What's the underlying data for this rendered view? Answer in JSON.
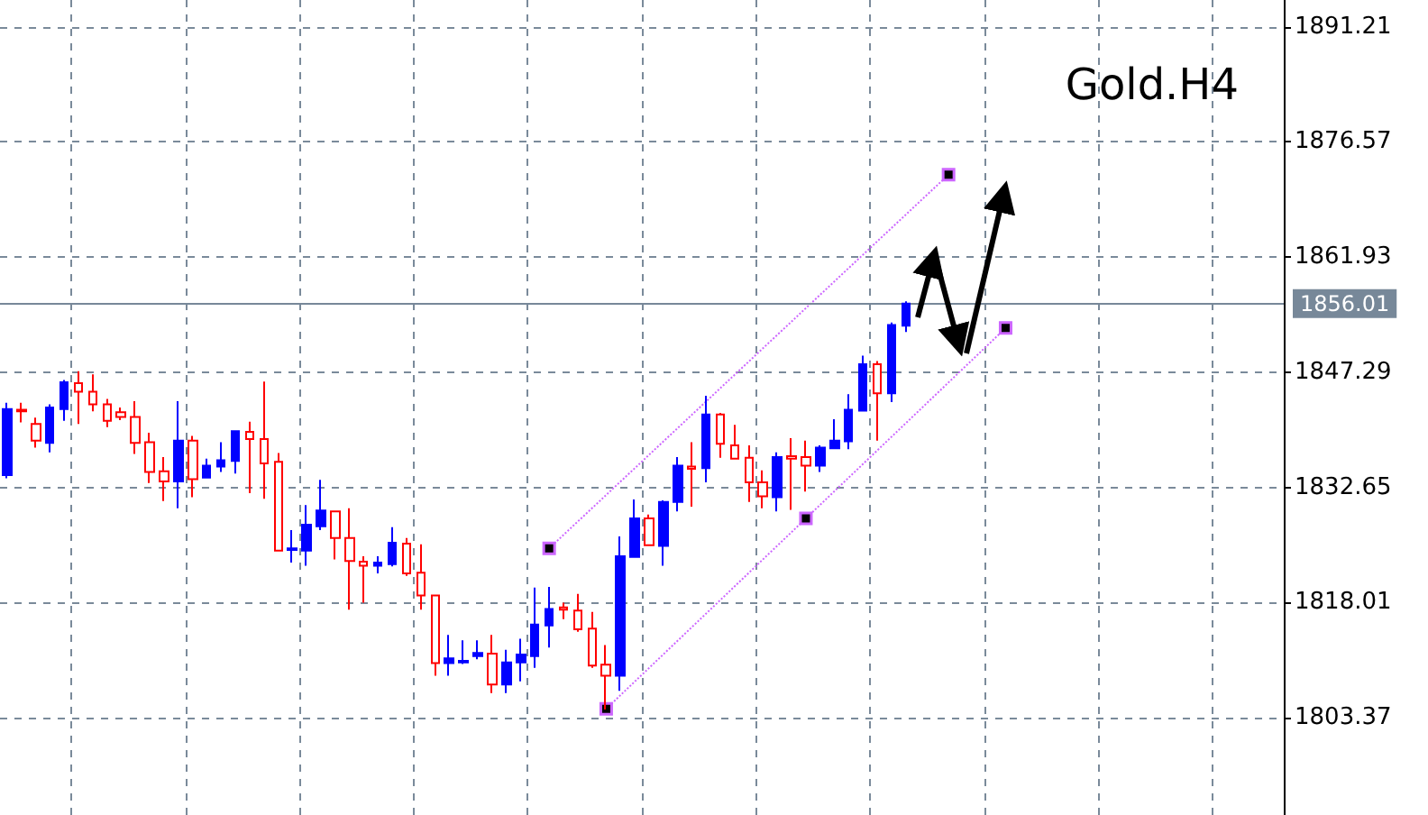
{
  "chart_data": {
    "type": "candlestick",
    "title": "Gold.H4",
    "categories": [
      null,
      null,
      null,
      null,
      null,
      null,
      null,
      null,
      null,
      null,
      null,
      null,
      null,
      null,
      null,
      null,
      null,
      null,
      null,
      null,
      null,
      null,
      null,
      null,
      null,
      null,
      null,
      null,
      null,
      null,
      null,
      null,
      null,
      null,
      null,
      null,
      null,
      null,
      null,
      null,
      null,
      null,
      null,
      null,
      null,
      null,
      null,
      null,
      null,
      null,
      null,
      null,
      null,
      null,
      null,
      null,
      null,
      null,
      null,
      null,
      null,
      null,
      null,
      null,
      null,
      null,
      null,
      null,
      null,
      null,
      null,
      null,
      null,
      null,
      null,
      null,
      null,
      null,
      null,
      null,
      null,
      null,
      null,
      null,
      null,
      null,
      null,
      null,
      null,
      null
    ],
    "ohlc": [
      [
        1834.2,
        1843.4,
        1833.8,
        1842.6
      ],
      [
        1842.5,
        1843.4,
        1840.9,
        1842.3
      ],
      [
        1840.7,
        1841.5,
        1837.7,
        1838.6
      ],
      [
        1838.3,
        1843.2,
        1837.1,
        1842.8
      ],
      [
        1842.6,
        1846.3,
        1841.1,
        1846.0
      ],
      [
        1845.9,
        1847.4,
        1840.7,
        1844.8
      ],
      [
        1844.8,
        1847.0,
        1842.3,
        1843.2
      ],
      [
        1843.2,
        1843.9,
        1840.3,
        1841.1
      ],
      [
        1842.2,
        1842.8,
        1841.2,
        1841.6
      ],
      [
        1841.6,
        1843.6,
        1836.9,
        1838.3
      ],
      [
        1838.4,
        1839.6,
        1833.2,
        1834.6
      ],
      [
        1834.7,
        1836.5,
        1830.9,
        1833.4
      ],
      [
        1833.4,
        1843.6,
        1830.0,
        1838.6
      ],
      [
        1838.6,
        1839.2,
        1831.4,
        1833.7
      ],
      [
        1833.9,
        1836.3,
        1833.9,
        1835.4
      ],
      [
        1835.3,
        1838.4,
        1834.6,
        1836.1
      ],
      [
        1836.0,
        1839.8,
        1834.4,
        1839.8
      ],
      [
        1839.7,
        1841.0,
        1831.9,
        1838.8
      ],
      [
        1838.8,
        1846.1,
        1831.2,
        1835.7
      ],
      [
        1835.9,
        1837.0,
        1824.5,
        1824.6
      ],
      [
        1824.7,
        1827.2,
        1823.1,
        1824.9
      ],
      [
        1824.6,
        1830.4,
        1822.7,
        1827.9
      ],
      [
        1827.7,
        1833.6,
        1827.2,
        1829.7
      ],
      [
        1829.6,
        1829.6,
        1823.5,
        1826.2
      ],
      [
        1826.2,
        1830.0,
        1817.1,
        1823.3
      ],
      [
        1823.2,
        1823.9,
        1818.0,
        1822.7
      ],
      [
        1822.7,
        1823.9,
        1821.7,
        1823.1
      ],
      [
        1822.9,
        1827.6,
        1822.6,
        1825.6
      ],
      [
        1825.5,
        1826.2,
        1821.4,
        1821.7
      ],
      [
        1821.8,
        1825.4,
        1817.1,
        1818.9
      ],
      [
        1818.9,
        1818.9,
        1808.7,
        1810.3
      ],
      [
        1810.3,
        1813.9,
        1808.7,
        1810.9
      ],
      [
        1810.4,
        1813.2,
        1810.2,
        1810.6
      ],
      [
        1811.2,
        1813.2,
        1810.8,
        1811.6
      ],
      [
        1811.5,
        1813.9,
        1806.5,
        1807.6
      ],
      [
        1807.6,
        1812.0,
        1806.5,
        1810.4
      ],
      [
        1810.4,
        1813.4,
        1808.0,
        1811.4
      ],
      [
        1811.2,
        1819.9,
        1809.7,
        1815.2
      ],
      [
        1815.1,
        1820.0,
        1812.3,
        1817.2
      ],
      [
        1817.4,
        1818.0,
        1815.9,
        1817.1
      ],
      [
        1817.0,
        1819.1,
        1814.3,
        1814.6
      ],
      [
        1814.7,
        1816.8,
        1809.7,
        1810.0
      ],
      [
        1810.1,
        1812.6,
        1804.4,
        1808.7
      ],
      [
        1808.7,
        1826.4,
        1806.8,
        1823.9
      ],
      [
        1823.8,
        1831.1,
        1823.8,
        1828.7
      ],
      [
        1828.7,
        1829.2,
        1825.3,
        1825.3
      ],
      [
        1825.2,
        1831.0,
        1822.7,
        1830.8
      ],
      [
        1830.8,
        1836.5,
        1829.6,
        1835.4
      ],
      [
        1835.3,
        1838.4,
        1830.2,
        1835.0
      ],
      [
        1835.1,
        1844.3,
        1833.3,
        1841.9
      ],
      [
        1841.9,
        1842.1,
        1836.4,
        1838.2
      ],
      [
        1838.0,
        1840.6,
        1836.3,
        1836.3
      ],
      [
        1836.4,
        1838.0,
        1830.8,
        1833.3
      ],
      [
        1833.3,
        1834.8,
        1830.0,
        1831.5
      ],
      [
        1831.4,
        1837.1,
        1829.6,
        1836.5
      ],
      [
        1836.6,
        1838.9,
        1829.8,
        1836.3
      ],
      [
        1836.5,
        1838.6,
        1832.1,
        1835.4
      ],
      [
        1835.4,
        1838.0,
        1834.6,
        1837.7
      ],
      [
        1837.6,
        1841.3,
        1837.6,
        1838.6
      ],
      [
        1838.5,
        1844.5,
        1837.5,
        1842.5
      ],
      [
        1842.4,
        1849.4,
        1842.4,
        1848.3
      ],
      [
        1848.3,
        1848.7,
        1838.6,
        1844.6
      ],
      [
        1844.6,
        1853.6,
        1843.5,
        1853.3
      ],
      [
        1853.2,
        1856.3,
        1852.4,
        1856.0
      ],
      null,
      null,
      null,
      null,
      null,
      null,
      null,
      null,
      null,
      null,
      null,
      null,
      null,
      null,
      null,
      null,
      null,
      null,
      null,
      null,
      null,
      null,
      null,
      null,
      null,
      null
    ],
    "colors": [
      "#0000ff",
      "#ff0000",
      "#ff0000",
      "#0000ff",
      "#0000ff",
      "#ff0000",
      "#ff0000",
      "#ff0000",
      "#ff0000",
      "#ff0000",
      "#ff0000",
      "#ff0000",
      "#0000ff",
      "#ff0000",
      "#0000ff",
      "#0000ff",
      "#0000ff",
      "#ff0000",
      "#ff0000",
      "#ff0000",
      "#0000ff",
      "#0000ff",
      "#0000ff",
      "#ff0000",
      "#ff0000",
      "#ff0000",
      "#0000ff",
      "#0000ff",
      "#ff0000",
      "#ff0000",
      "#ff0000",
      "#0000ff",
      "#0000ff",
      "#0000ff",
      "#ff0000",
      "#0000ff",
      "#0000ff",
      "#0000ff",
      "#0000ff",
      "#ff0000",
      "#ff0000",
      "#ff0000",
      "#ff0000",
      "#0000ff",
      "#0000ff",
      "#ff0000",
      "#0000ff",
      "#0000ff",
      "#ff0000",
      "#0000ff",
      "#ff0000",
      "#ff0000",
      "#ff0000",
      "#ff0000",
      "#0000ff",
      "#ff0000",
      "#ff0000",
      "#0000ff",
      "#0000ff",
      "#0000ff",
      "#0000ff",
      "#ff0000",
      "#0000ff",
      "#0000ff",
      null,
      null,
      null,
      null,
      null,
      null,
      null,
      null,
      null,
      null,
      null,
      null,
      null,
      null,
      null,
      null,
      null,
      null,
      null,
      null,
      null,
      null,
      null,
      null,
      null,
      null
    ],
    "ylim": [
      1791,
      1894.6
    ],
    "yticks": [
      1803.37,
      1818.01,
      1832.65,
      1847.29,
      1861.93,
      1876.57,
      1891.21
    ],
    "grid": true,
    "ref_lines": [
      {
        "axis": "y",
        "value": 1856.01,
        "label": "1856.01",
        "color": "#778899"
      }
    ],
    "series": [
      {
        "type": "line",
        "color": "#cc66ff",
        "marker": "square",
        "line_style": "dotted",
        "values": [
          null,
          null,
          null,
          null,
          null,
          null,
          null,
          null,
          null,
          null,
          null,
          null,
          null,
          null,
          null,
          null,
          null,
          null,
          null,
          null,
          null,
          null,
          null,
          null,
          null,
          null,
          null,
          null,
          null,
          null,
          null,
          null,
          null,
          null,
          null,
          null,
          null,
          null,
          1824.9,
          null,
          null,
          null,
          null,
          null,
          null,
          null,
          null,
          null,
          null,
          null,
          null,
          null,
          null,
          null,
          null,
          null,
          null,
          null,
          null,
          null,
          null,
          null,
          null,
          null,
          null,
          null,
          1872.4,
          null,
          null,
          null,
          null,
          null,
          null,
          null,
          null,
          null,
          null,
          null,
          null,
          null,
          null,
          null,
          null,
          null,
          null,
          null,
          null,
          null,
          null,
          null
        ]
      },
      {
        "type": "line",
        "color": "#cc66ff",
        "marker": "square",
        "line_style": "dotted",
        "values": [
          null,
          null,
          null,
          null,
          null,
          null,
          null,
          null,
          null,
          null,
          null,
          null,
          null,
          null,
          null,
          null,
          null,
          null,
          null,
          null,
          null,
          null,
          null,
          null,
          null,
          null,
          null,
          null,
          null,
          null,
          null,
          null,
          null,
          null,
          null,
          null,
          null,
          null,
          null,
          null,
          null,
          null,
          1804.5,
          null,
          null,
          null,
          null,
          null,
          null,
          null,
          null,
          null,
          null,
          null,
          null,
          null,
          1828.7,
          null,
          null,
          null,
          null,
          null,
          null,
          null,
          null,
          null,
          null,
          null,
          null,
          null,
          1852.9,
          null,
          null,
          null,
          null,
          null,
          null,
          null,
          null,
          null,
          null,
          null,
          null,
          null,
          null,
          null,
          null,
          null,
          null,
          null
        ]
      }
    ]
  }
}
